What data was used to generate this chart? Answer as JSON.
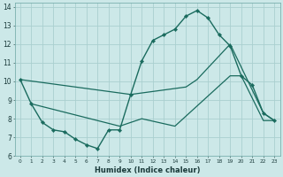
{
  "xlabel": "Humidex (Indice chaleur)",
  "bg_color": "#cce8e8",
  "grid_color": "#aacfcf",
  "line_color": "#1a6b5e",
  "xlim": [
    -0.5,
    23.5
  ],
  "ylim": [
    6,
    14.2
  ],
  "xtick_vals": [
    0,
    1,
    2,
    3,
    4,
    5,
    6,
    7,
    8,
    9,
    10,
    11,
    12,
    13,
    14,
    15,
    16,
    17,
    18,
    19,
    20,
    21,
    22,
    23
  ],
  "ytick_vals": [
    6,
    7,
    8,
    9,
    10,
    11,
    12,
    13,
    14
  ],
  "curve1_x": [
    0,
    1,
    2,
    3,
    4,
    5,
    6,
    7,
    8,
    9,
    10,
    11,
    12,
    13,
    14,
    15,
    16,
    17,
    18,
    19,
    20,
    21,
    22,
    23
  ],
  "curve1_y": [
    10.1,
    8.8,
    7.8,
    7.4,
    7.3,
    6.9,
    6.6,
    6.4,
    7.4,
    7.4,
    9.3,
    11.1,
    12.2,
    12.5,
    12.8,
    13.5,
    13.8,
    13.4,
    12.5,
    11.9,
    10.3,
    9.8,
    8.3,
    7.9
  ],
  "curve2_x": [
    0,
    10,
    15,
    16,
    19,
    22,
    23
  ],
  "curve2_y": [
    10.1,
    9.3,
    9.7,
    10.1,
    12.0,
    8.3,
    7.9
  ],
  "curve3_x": [
    1,
    9,
    11,
    14,
    19,
    20,
    22,
    23
  ],
  "curve3_y": [
    8.8,
    7.6,
    8.0,
    7.6,
    10.3,
    10.3,
    7.9,
    7.9
  ]
}
